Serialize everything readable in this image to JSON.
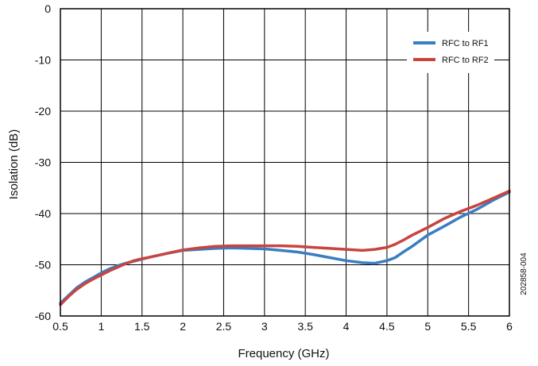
{
  "chart_data": {
    "type": "line",
    "title": "",
    "xlabel": "Frequency (GHz)",
    "ylabel": "Isolation  (dB)",
    "xlim": [
      0.5,
      6
    ],
    "ylim": [
      -60,
      0
    ],
    "xticks": [
      0.5,
      1,
      1.5,
      2,
      2.5,
      3,
      3.5,
      4,
      4.5,
      5,
      5.5,
      6
    ],
    "xtick_labels": [
      "0.5",
      "1",
      "1.5",
      "2",
      "2.5",
      "3",
      "3.5",
      "4",
      "4.5",
      "5",
      "5.5",
      "6"
    ],
    "yticks": [
      0,
      -10,
      -20,
      -30,
      -40,
      -50,
      -60
    ],
    "ytick_labels": [
      "0",
      "-10",
      "-20",
      "-30",
      "-40",
      "-50",
      "-60"
    ],
    "grid": true,
    "legend_position": "top-right",
    "series": [
      {
        "name": "RFC to RF1",
        "color": "#3a7dc1",
        "x": [
          0.5,
          0.6,
          0.7,
          0.8,
          0.9,
          1.0,
          1.1,
          1.2,
          1.3,
          1.4,
          1.5,
          1.6,
          1.8,
          2.0,
          2.2,
          2.4,
          2.6,
          2.8,
          3.0,
          3.2,
          3.4,
          3.6,
          3.8,
          4.0,
          4.2,
          4.35,
          4.5,
          4.6,
          4.7,
          4.8,
          5.0,
          5.2,
          5.4,
          5.6,
          5.8,
          6.0
        ],
        "values": [
          -57.5,
          -56.0,
          -54.5,
          -53.4,
          -52.5,
          -51.6,
          -50.8,
          -50.2,
          -49.7,
          -49.3,
          -48.9,
          -48.5,
          -47.8,
          -47.2,
          -47.0,
          -46.8,
          -46.7,
          -46.8,
          -46.9,
          -47.2,
          -47.5,
          -48.0,
          -48.6,
          -49.2,
          -49.6,
          -49.7,
          -49.2,
          -48.6,
          -47.5,
          -46.5,
          -44.2,
          -42.5,
          -40.7,
          -39.2,
          -37.4,
          -35.8
        ]
      },
      {
        "name": "RFC to RF2",
        "color": "#c8453f",
        "x": [
          0.5,
          0.6,
          0.7,
          0.8,
          0.9,
          1.0,
          1.1,
          1.2,
          1.3,
          1.4,
          1.5,
          1.6,
          1.8,
          2.0,
          2.2,
          2.4,
          2.6,
          2.8,
          3.0,
          3.2,
          3.4,
          3.6,
          3.8,
          4.0,
          4.2,
          4.35,
          4.5,
          4.6,
          4.7,
          4.8,
          5.0,
          5.2,
          5.4,
          5.6,
          5.8,
          6.0
        ],
        "values": [
          -57.8,
          -56.2,
          -54.8,
          -53.7,
          -52.8,
          -52.0,
          -51.2,
          -50.5,
          -49.8,
          -49.2,
          -48.8,
          -48.5,
          -47.8,
          -47.1,
          -46.7,
          -46.4,
          -46.3,
          -46.3,
          -46.3,
          -46.3,
          -46.4,
          -46.6,
          -46.8,
          -47.0,
          -47.2,
          -47.0,
          -46.6,
          -46.0,
          -45.2,
          -44.3,
          -42.7,
          -41.0,
          -39.6,
          -38.4,
          -37.0,
          -35.6
        ]
      }
    ]
  },
  "figure_code": "202858-004"
}
